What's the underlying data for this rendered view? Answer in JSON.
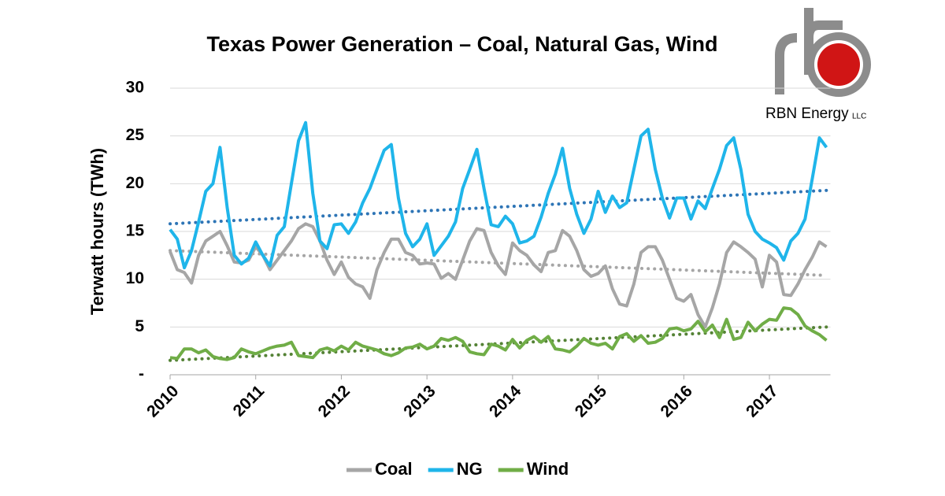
{
  "chart_data": {
    "type": "line",
    "title": "Texas Power Generation – Coal, Natural Gas, Wind",
    "y_label": "Terwatt hours (TWh)",
    "logo": {
      "name": "RBN Energy",
      "suffix": "LLC"
    },
    "categories": [
      "2010",
      null,
      null,
      null,
      null,
      null,
      null,
      null,
      null,
      null,
      null,
      null,
      "2011",
      null,
      null,
      null,
      null,
      null,
      null,
      null,
      null,
      null,
      null,
      null,
      "2012",
      null,
      null,
      null,
      null,
      null,
      null,
      null,
      null,
      null,
      null,
      null,
      "2013",
      null,
      null,
      null,
      null,
      null,
      null,
      null,
      null,
      null,
      null,
      null,
      "2014",
      null,
      null,
      null,
      null,
      null,
      null,
      null,
      null,
      null,
      null,
      null,
      "2015",
      null,
      null,
      null,
      null,
      null,
      null,
      null,
      null,
      null,
      null,
      null,
      "2016",
      null,
      null,
      null,
      null,
      null,
      null,
      null,
      null,
      null,
      null,
      null,
      "2017",
      null,
      null,
      null,
      null,
      null,
      null,
      null,
      null
    ],
    "series": [
      {
        "name": "Coal",
        "color": "#a6a6a6",
        "trend_color": "#a6a6a6",
        "trend": [
          13.0,
          10.4
        ],
        "values": [
          12.9,
          11.0,
          10.7,
          9.6,
          12.5,
          14.0,
          14.5,
          15.0,
          13.5,
          11.8,
          11.7,
          12.0,
          13.4,
          12.5,
          11.0,
          12.0,
          13.0,
          14.0,
          15.3,
          15.8,
          15.5,
          14.0,
          12.0,
          10.5,
          11.8,
          10.2,
          9.5,
          9.2,
          8.0,
          11.0,
          12.8,
          14.2,
          14.2,
          12.8,
          12.5,
          11.6,
          11.7,
          11.6,
          10.1,
          10.6,
          10.0,
          12.0,
          14.0,
          15.3,
          15.1,
          12.8,
          11.4,
          10.5,
          13.8,
          13.0,
          12.5,
          11.5,
          10.8,
          12.8,
          13.0,
          15.1,
          14.5,
          13.0,
          11.0,
          10.3,
          10.6,
          11.4,
          9.0,
          7.4,
          7.2,
          9.5,
          12.8,
          13.4,
          13.4,
          12.0,
          10.0,
          8.0,
          7.7,
          8.4,
          6.3,
          5.0,
          7.0,
          9.5,
          12.8,
          13.9,
          13.4,
          12.8,
          12.1,
          9.2,
          12.5,
          11.8,
          8.4,
          8.3,
          9.5,
          11.0,
          12.3,
          13.9,
          13.4
        ]
      },
      {
        "name": "NG",
        "color": "#1fb5ea",
        "trend_color": "#2e75b6",
        "trend": [
          15.8,
          19.3
        ],
        "values": [
          15.2,
          14.2,
          11.2,
          13.0,
          16.0,
          19.2,
          20.0,
          23.8,
          17.5,
          12.5,
          11.6,
          12.2,
          13.9,
          12.5,
          11.4,
          14.6,
          15.5,
          20.0,
          24.5,
          26.4,
          19.0,
          14.0,
          13.2,
          15.7,
          15.8,
          14.8,
          16.0,
          18.0,
          19.5,
          21.5,
          23.5,
          24.1,
          18.5,
          14.8,
          13.4,
          14.2,
          15.8,
          12.5,
          13.5,
          14.5,
          16.0,
          19.5,
          21.5,
          23.6,
          19.5,
          15.7,
          15.5,
          16.6,
          15.8,
          13.8,
          14.0,
          14.5,
          16.5,
          19.0,
          21.0,
          23.7,
          19.5,
          16.8,
          14.8,
          16.3,
          19.2,
          17.0,
          18.7,
          17.5,
          18.0,
          21.5,
          25.0,
          25.7,
          21.5,
          18.5,
          16.4,
          18.5,
          18.5,
          16.3,
          18.2,
          17.4,
          19.5,
          21.5,
          24.0,
          24.8,
          21.5,
          16.8,
          15.0,
          14.2,
          13.8,
          13.3,
          12.0,
          14.0,
          14.8,
          16.3,
          20.5,
          24.8,
          23.8
        ]
      },
      {
        "name": "Wind",
        "color": "#70ad47",
        "trend_color": "#548235",
        "trend": [
          1.5,
          5.0
        ],
        "values": [
          1.8,
          1.7,
          2.7,
          2.7,
          2.3,
          2.6,
          1.9,
          1.7,
          1.6,
          1.8,
          2.7,
          2.4,
          2.2,
          2.5,
          2.8,
          3.0,
          3.1,
          3.4,
          2.0,
          1.9,
          1.8,
          2.6,
          2.8,
          2.5,
          3.0,
          2.6,
          3.4,
          3.0,
          2.8,
          2.6,
          2.2,
          2.0,
          2.3,
          2.8,
          2.9,
          3.2,
          2.7,
          3.0,
          3.8,
          3.6,
          3.9,
          3.5,
          2.4,
          2.2,
          2.1,
          3.2,
          3.0,
          2.6,
          3.7,
          2.8,
          3.6,
          4.0,
          3.4,
          4.0,
          2.7,
          2.6,
          2.4,
          3.0,
          3.8,
          3.3,
          3.1,
          3.3,
          2.7,
          4.0,
          4.3,
          3.5,
          4.1,
          3.3,
          3.4,
          3.8,
          4.8,
          4.9,
          4.6,
          4.8,
          5.6,
          4.5,
          5.2,
          3.9,
          5.8,
          3.7,
          3.9,
          5.5,
          4.6,
          5.3,
          5.8,
          5.7,
          7.0,
          6.9,
          6.3,
          5.1,
          4.6,
          4.2,
          3.6
        ]
      }
    ],
    "ylim": [
      0,
      30
    ],
    "yticks": [
      {
        "value": 0,
        "label": "-"
      },
      5,
      10,
      15,
      20,
      25,
      30
    ],
    "grid": true
  }
}
